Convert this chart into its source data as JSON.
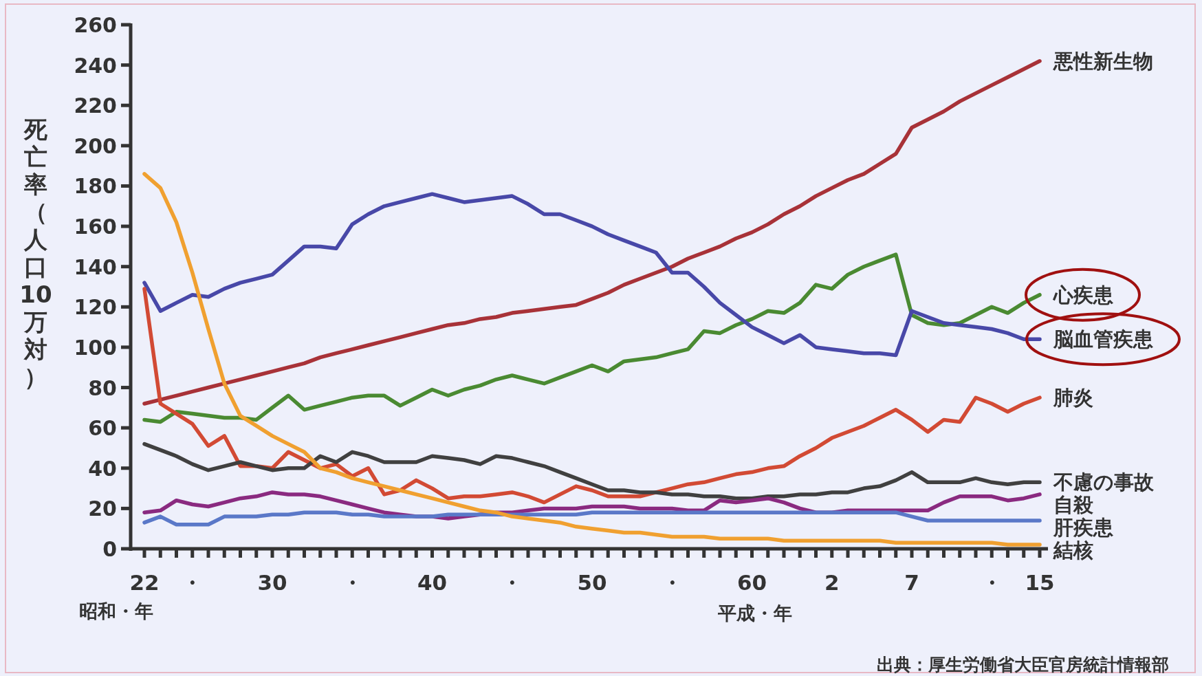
{
  "chart_data": {
    "type": "line",
    "xlabel": "昭和・年",
    "ylabel": "死亡率（人口10万対）",
    "annotations": [
      "平成・年",
      "出典：厚生労働省大臣官房統計情報部"
    ],
    "categories": [
      "22",
      null,
      null,
      "・",
      null,
      null,
      null,
      null,
      "30",
      null,
      null,
      null,
      null,
      "・",
      null,
      null,
      null,
      null,
      "40",
      null,
      null,
      null,
      null,
      "・",
      null,
      null,
      null,
      null,
      "50",
      null,
      null,
      null,
      null,
      "・",
      null,
      null,
      null,
      null,
      "60",
      null,
      null,
      null,
      null,
      "2",
      null,
      null,
      null,
      null,
      "7",
      null,
      null,
      null,
      null,
      "・",
      null,
      null,
      "15"
    ],
    "ylim": [
      0,
      260
    ],
    "yticks": [
      0,
      20,
      40,
      60,
      80,
      100,
      120,
      140,
      160,
      180,
      200,
      220,
      240,
      260
    ],
    "grid": false,
    "legend": false,
    "marker": "none",
    "line_style": "solid",
    "series": [
      {
        "name": "悪性新生物",
        "color": "#a83238",
        "values": [
          72,
          74,
          76,
          78,
          80,
          82,
          84,
          86,
          88,
          90,
          92,
          95,
          97,
          99,
          101,
          103,
          105,
          107,
          109,
          111,
          112,
          114,
          115,
          117,
          118,
          119,
          120,
          121,
          124,
          127,
          131,
          134,
          137,
          140,
          144,
          147,
          150,
          154,
          157,
          161,
          166,
          170,
          175,
          179,
          183,
          186,
          191,
          196,
          209,
          213,
          217,
          222,
          226,
          230,
          234,
          238,
          242
        ]
      },
      {
        "name": "心疾患",
        "color": "#4a8a32",
        "values": [
          64,
          63,
          68,
          67,
          66,
          65,
          65,
          64,
          70,
          76,
          69,
          71,
          73,
          75,
          76,
          76,
          71,
          75,
          79,
          76,
          79,
          81,
          84,
          86,
          84,
          82,
          85,
          88,
          91,
          88,
          93,
          94,
          95,
          97,
          99,
          108,
          107,
          111,
          114,
          118,
          117,
          122,
          131,
          129,
          136,
          140,
          143,
          146,
          116,
          112,
          111,
          112,
          116,
          120,
          117,
          122,
          126
        ]
      },
      {
        "name": "脳血管疾患",
        "color": "#4848a8",
        "values": [
          132,
          118,
          122,
          126,
          125,
          129,
          132,
          134,
          136,
          143,
          150,
          150,
          149,
          161,
          166,
          170,
          172,
          174,
          176,
          174,
          172,
          173,
          174,
          175,
          171,
          166,
          166,
          163,
          160,
          156,
          153,
          150,
          147,
          137,
          137,
          130,
          122,
          116,
          110,
          106,
          102,
          106,
          100,
          99,
          98,
          97,
          97,
          96,
          118,
          115,
          112,
          111,
          110,
          109,
          107,
          104,
          104
        ]
      },
      {
        "name": "肺炎",
        "color": "#d24a34",
        "values": [
          129,
          72,
          67,
          62,
          51,
          56,
          41,
          41,
          40,
          48,
          44,
          40,
          42,
          36,
          40,
          27,
          29,
          34,
          30,
          25,
          26,
          26,
          27,
          28,
          26,
          23,
          27,
          31,
          29,
          26,
          26,
          26,
          28,
          30,
          32,
          33,
          35,
          37,
          38,
          40,
          41,
          46,
          50,
          55,
          58,
          61,
          65,
          69,
          64,
          58,
          64,
          63,
          75,
          72,
          68,
          72,
          75
        ]
      },
      {
        "name": "不慮の事故",
        "color": "#404040",
        "values": [
          52,
          49,
          46,
          42,
          39,
          41,
          43,
          41,
          39,
          40,
          40,
          46,
          43,
          48,
          46,
          43,
          43,
          43,
          46,
          45,
          44,
          42,
          46,
          45,
          43,
          41,
          38,
          35,
          32,
          29,
          29,
          28,
          28,
          27,
          27,
          26,
          26,
          25,
          25,
          26,
          26,
          27,
          27,
          28,
          28,
          30,
          31,
          34,
          38,
          33,
          33,
          33,
          35,
          33,
          32,
          33,
          33
        ]
      },
      {
        "name": "自殺",
        "color": "#8a2a80",
        "values": [
          18,
          19,
          24,
          22,
          21,
          23,
          25,
          26,
          28,
          27,
          27,
          26,
          24,
          22,
          20,
          18,
          17,
          16,
          16,
          15,
          16,
          17,
          18,
          18,
          19,
          20,
          20,
          20,
          21,
          21,
          21,
          20,
          20,
          20,
          19,
          19,
          24,
          23,
          24,
          25,
          23,
          20,
          18,
          18,
          19,
          19,
          19,
          19,
          19,
          19,
          23,
          26,
          26,
          26,
          24,
          25,
          27
        ]
      },
      {
        "name": "肝疾患",
        "color": "#5a78c8",
        "values": [
          13,
          16,
          12,
          12,
          12,
          16,
          16,
          16,
          17,
          17,
          18,
          18,
          18,
          17,
          17,
          16,
          16,
          16,
          16,
          17,
          17,
          17,
          17,
          17,
          17,
          17,
          17,
          17,
          18,
          18,
          18,
          18,
          18,
          18,
          18,
          18,
          18,
          18,
          18,
          18,
          18,
          18,
          18,
          18,
          18,
          18,
          18,
          18,
          16,
          14,
          14,
          14,
          14,
          14,
          14,
          14,
          14
        ]
      },
      {
        "name": "結核",
        "color": "#f0a030",
        "values": [
          186,
          179,
          162,
          137,
          109,
          82,
          66,
          61,
          56,
          52,
          48,
          40,
          38,
          35,
          33,
          31,
          29,
          27,
          25,
          23,
          21,
          19,
          18,
          16,
          15,
          14,
          13,
          11,
          10,
          9,
          8,
          8,
          7,
          6,
          6,
          6,
          5,
          5,
          5,
          5,
          4,
          4,
          4,
          4,
          4,
          4,
          4,
          3,
          3,
          3,
          3,
          3,
          3,
          3,
          2,
          2,
          2
        ]
      }
    ]
  }
}
